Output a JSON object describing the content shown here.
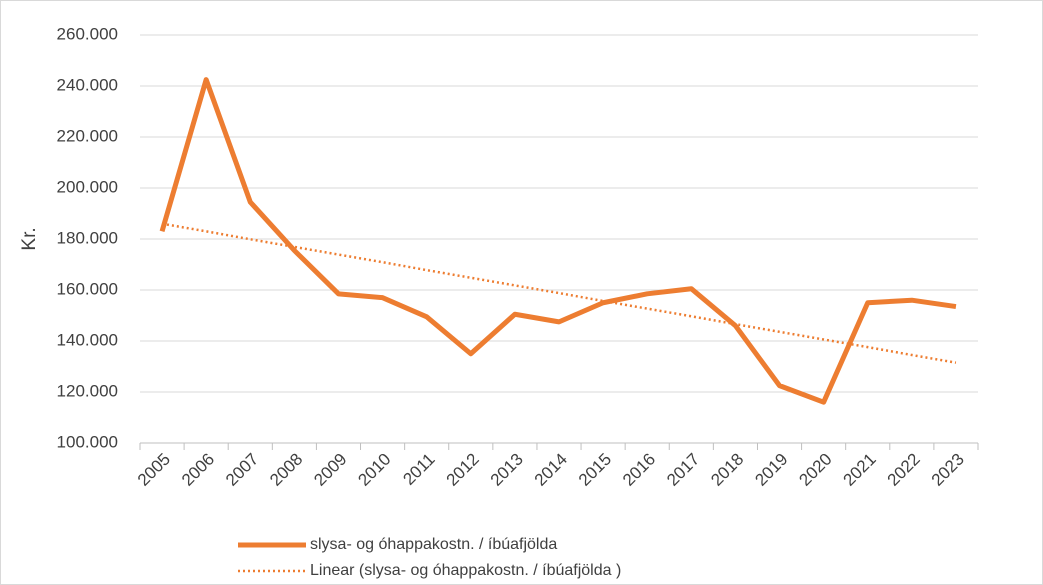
{
  "chart_data": {
    "type": "line",
    "ylabel": "Kr.",
    "categories": [
      "2005",
      "2006",
      "2007",
      "2008",
      "2009",
      "2010",
      "2011",
      "2012",
      "2013",
      "2014",
      "2015",
      "2016",
      "2017",
      "2018",
      "2019",
      "2020",
      "2021",
      "2022",
      "2023"
    ],
    "series": [
      {
        "name": "slysa- og óhappakostn. / íbúafjölda",
        "color": "#ed7d31",
        "style": "solid",
        "values": [
          183000,
          242500,
          194500,
          175500,
          158500,
          157000,
          149500,
          135000,
          150500,
          147500,
          155000,
          158500,
          160500,
          146000,
          122500,
          116000,
          155000,
          156000,
          153500
        ]
      },
      {
        "name": "Linear (slysa- og óhappakostn. / íbúafjölda )",
        "color": "#ed7d31",
        "style": "dotted",
        "values": [
          186000,
          183000,
          179900,
          176900,
          173900,
          170900,
          167800,
          164800,
          161800,
          158800,
          155700,
          152700,
          149700,
          146600,
          143600,
          140600,
          137600,
          134500,
          131500
        ]
      }
    ],
    "ylim": [
      100000,
      260000
    ],
    "yticks": [
      {
        "value": 100000,
        "label": "100.000"
      },
      {
        "value": 120000,
        "label": "120.000"
      },
      {
        "value": 140000,
        "label": "140.000"
      },
      {
        "value": 160000,
        "label": "160.000"
      },
      {
        "value": 180000,
        "label": "180.000"
      },
      {
        "value": 200000,
        "label": "200.000"
      },
      {
        "value": 220000,
        "label": "220.000"
      },
      {
        "value": 240000,
        "label": "240.000"
      },
      {
        "value": 260000,
        "label": "260.000"
      }
    ],
    "grid": true,
    "legend": "bottom"
  }
}
